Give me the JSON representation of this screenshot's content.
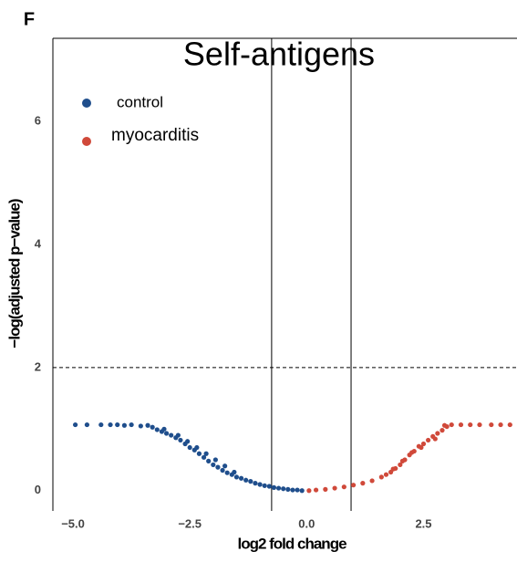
{
  "chart_data": {
    "type": "scatter",
    "panel_label": "F",
    "title": "Self-antigens",
    "xlabel": "log2 fold change",
    "ylabel": "−log(adjusted p−value)",
    "xlim": [
      -5.43,
      4.5
    ],
    "ylim": [
      -0.33,
      7.35
    ],
    "xticks": [
      {
        "value": -5,
        "label": "−5.0"
      },
      {
        "value": -2.5,
        "label": "−2.5"
      },
      {
        "value": 0,
        "label": "0.0"
      },
      {
        "value": 2.5,
        "label": "2.5"
      }
    ],
    "yticks": [
      0,
      2,
      4,
      6
    ],
    "vlines": [
      -0.75,
      0.95
    ],
    "hline": 2,
    "legend": "upper left",
    "series": [
      {
        "name": "control",
        "color": "#1f4e8c",
        "x": [
          -4.95,
          -4.7,
          -4.4,
          -4.2,
          -4.05,
          -3.9,
          -3.75,
          -3.55,
          -3.4,
          -3.3,
          -3.2,
          -3.1,
          -3.0,
          -2.9,
          -2.8,
          -2.7,
          -2.6,
          -2.5,
          -2.4,
          -2.3,
          -2.2,
          -2.1,
          -2.0,
          -1.9,
          -1.8,
          -1.7,
          -1.6,
          -1.5,
          -1.4,
          -1.3,
          -1.2,
          -1.1,
          -1.0,
          -0.9,
          -0.8,
          -0.7,
          -0.6,
          -0.5,
          -0.4,
          -0.3,
          -0.2,
          -0.1,
          -3.05,
          -2.75,
          -2.55,
          -2.35,
          -2.15,
          -1.95,
          -1.75,
          -1.55
        ],
        "values": [
          1.07,
          1.07,
          1.07,
          1.07,
          1.07,
          1.06,
          1.07,
          1.05,
          1.06,
          1.03,
          0.99,
          0.96,
          0.93,
          0.9,
          0.86,
          0.82,
          0.76,
          0.7,
          0.66,
          0.6,
          0.54,
          0.48,
          0.42,
          0.38,
          0.33,
          0.29,
          0.26,
          0.22,
          0.2,
          0.17,
          0.15,
          0.12,
          0.1,
          0.08,
          0.07,
          0.05,
          0.04,
          0.03,
          0.02,
          0.01,
          0.01,
          0.0,
          1.0,
          0.9,
          0.8,
          0.7,
          0.6,
          0.5,
          0.4,
          0.3
        ]
      },
      {
        "name": "myocarditis",
        "color": "#d0493a",
        "x": [
          0.05,
          0.2,
          0.4,
          0.6,
          0.8,
          1.0,
          1.2,
          1.4,
          1.6,
          1.7,
          1.8,
          1.9,
          2.0,
          2.1,
          2.2,
          2.3,
          2.4,
          2.5,
          2.6,
          2.7,
          2.8,
          2.9,
          3.0,
          3.1,
          3.3,
          3.5,
          3.7,
          3.95,
          4.15,
          4.35,
          1.85,
          2.05,
          2.25,
          2.45,
          2.75,
          2.95
        ],
        "values": [
          0.0,
          0.01,
          0.02,
          0.04,
          0.06,
          0.09,
          0.12,
          0.16,
          0.22,
          0.26,
          0.3,
          0.36,
          0.42,
          0.5,
          0.58,
          0.64,
          0.72,
          0.76,
          0.82,
          0.88,
          0.93,
          0.98,
          1.04,
          1.07,
          1.07,
          1.07,
          1.07,
          1.07,
          1.07,
          1.07,
          0.35,
          0.48,
          0.62,
          0.7,
          0.84,
          1.06
        ]
      }
    ]
  }
}
